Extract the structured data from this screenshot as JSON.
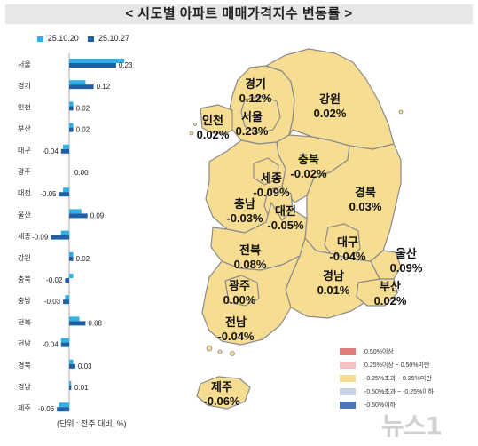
{
  "title": "< 시도별 아파트 매매가격지수 변동률 >",
  "legend": {
    "prev_label": "'25.10.20",
    "curr_label": "'25.10.27",
    "prev_color": "#2fb1e5",
    "curr_color": "#1f5fa5"
  },
  "unit_note": "(단위 : 전주 대비, %)",
  "map_legend": [
    {
      "label": "0.50%이상",
      "color": "#e07b7b"
    },
    {
      "label": "0.25%이상 ~ 0.50%미만",
      "color": "#f3c1c1"
    },
    {
      "label": "-0.25%초과 ~ 0.25%미만",
      "color": "#f7dd92"
    },
    {
      "label": "-0.50%초과 ~ -0.25%이하",
      "color": "#c5d2e6"
    },
    {
      "label": "-0.50%이하",
      "color": "#4d72b8"
    }
  ],
  "map_fill_color": "#f7dd92",
  "map_border_color": "#8a8a8a",
  "watermark": "뉴스1",
  "chart_data": {
    "type": "bar",
    "orientation": "horizontal",
    "categories": [
      "서울",
      "경기",
      "인천",
      "부산",
      "대구",
      "광주",
      "대전",
      "울산",
      "세종",
      "강원",
      "충북",
      "충남",
      "전북",
      "전남",
      "경북",
      "경남",
      "제주"
    ],
    "series": [
      {
        "name": "'25.10.20",
        "values": [
          0.27,
          0.08,
          0.02,
          0.02,
          -0.03,
          0.0,
          -0.03,
          0.06,
          -0.04,
          0.02,
          0.02,
          -0.02,
          0.05,
          -0.04,
          0.02,
          0.01,
          -0.05
        ]
      },
      {
        "name": "'25.10.27",
        "values": [
          0.23,
          0.12,
          0.02,
          0.02,
          -0.04,
          0.0,
          -0.05,
          0.09,
          -0.09,
          0.02,
          -0.02,
          -0.03,
          0.08,
          -0.04,
          0.03,
          0.01,
          -0.06
        ]
      }
    ],
    "data_labels": [
      "0.23",
      "0.12",
      "0.02",
      "0.02",
      "-0.04",
      "0.00",
      "-0.05",
      "0.09",
      "-0.09",
      "0.02",
      "-0.02",
      "-0.03",
      "0.08",
      "-0.04",
      "0.03",
      "0.01",
      "-0.06"
    ]
  },
  "map_regions": [
    {
      "name": "경기",
      "value": "0.12%"
    },
    {
      "name": "강원",
      "value": "0.02%"
    },
    {
      "name": "인천",
      "value": "0.02%"
    },
    {
      "name": "서울",
      "value": "0.23%"
    },
    {
      "name": "충북",
      "value": "-0.02%"
    },
    {
      "name": "세종",
      "value": "-0.09%"
    },
    {
      "name": "경북",
      "value": "0.03%"
    },
    {
      "name": "충남",
      "value": "-0.03%"
    },
    {
      "name": "대전",
      "value": "-0.05%"
    },
    {
      "name": "전북",
      "value": "0.08%"
    },
    {
      "name": "대구",
      "value": "-0.04%"
    },
    {
      "name": "울산",
      "value": "0.09%"
    },
    {
      "name": "광주",
      "value": "0.00%"
    },
    {
      "name": "경남",
      "value": "0.01%"
    },
    {
      "name": "부산",
      "value": "0.02%"
    },
    {
      "name": "전남",
      "value": "-0.04%"
    },
    {
      "name": "제주",
      "value": "-0.06%"
    }
  ]
}
